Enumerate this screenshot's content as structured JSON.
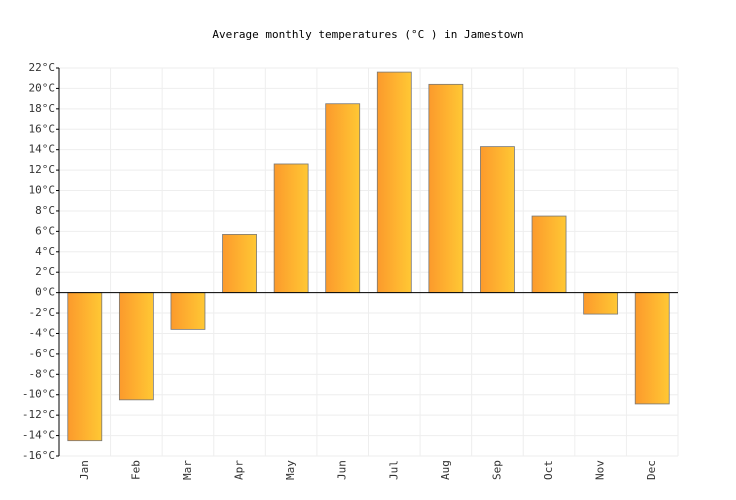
{
  "chart_data": {
    "type": "bar",
    "title": "Average monthly temperatures (°C ) in Jamestown",
    "categories": [
      "Jan",
      "Feb",
      "Mar",
      "Apr",
      "May",
      "Jun",
      "Jul",
      "Aug",
      "Sep",
      "Oct",
      "Nov",
      "Dec"
    ],
    "values": [
      -14.5,
      -10.5,
      -3.6,
      5.7,
      12.6,
      18.5,
      21.6,
      20.4,
      14.3,
      7.5,
      -2.1,
      -10.9
    ],
    "gradient": [
      "#fc9a2c",
      "#ffc834"
    ],
    "edge_color": "#777777",
    "ylim": [
      -16,
      22
    ],
    "yticks": [
      {
        "value": -16,
        "label": "-16°C"
      },
      {
        "value": -14,
        "label": "-14°C"
      },
      {
        "value": -12,
        "label": "-12°C"
      },
      {
        "value": -10,
        "label": "-10°C"
      },
      {
        "value": -8,
        "label": "-8°C"
      },
      {
        "value": -6,
        "label": "-6°C"
      },
      {
        "value": -4,
        "label": "-4°C"
      },
      {
        "value": -2,
        "label": "-2°C"
      },
      {
        "value": 0,
        "label": "0°C"
      },
      {
        "value": 2,
        "label": "2°C"
      },
      {
        "value": 4,
        "label": "4°C"
      },
      {
        "value": 6,
        "label": "6°C"
      },
      {
        "value": 8,
        "label": "8°C"
      },
      {
        "value": 10,
        "label": "10°C"
      },
      {
        "value": 12,
        "label": "12°C"
      },
      {
        "value": 14,
        "label": "14°C"
      },
      {
        "value": 16,
        "label": "16°C"
      },
      {
        "value": 18,
        "label": "18°C"
      },
      {
        "value": 20,
        "label": "20°C"
      },
      {
        "value": 22,
        "label": "22°C"
      }
    ],
    "grid": true
  }
}
